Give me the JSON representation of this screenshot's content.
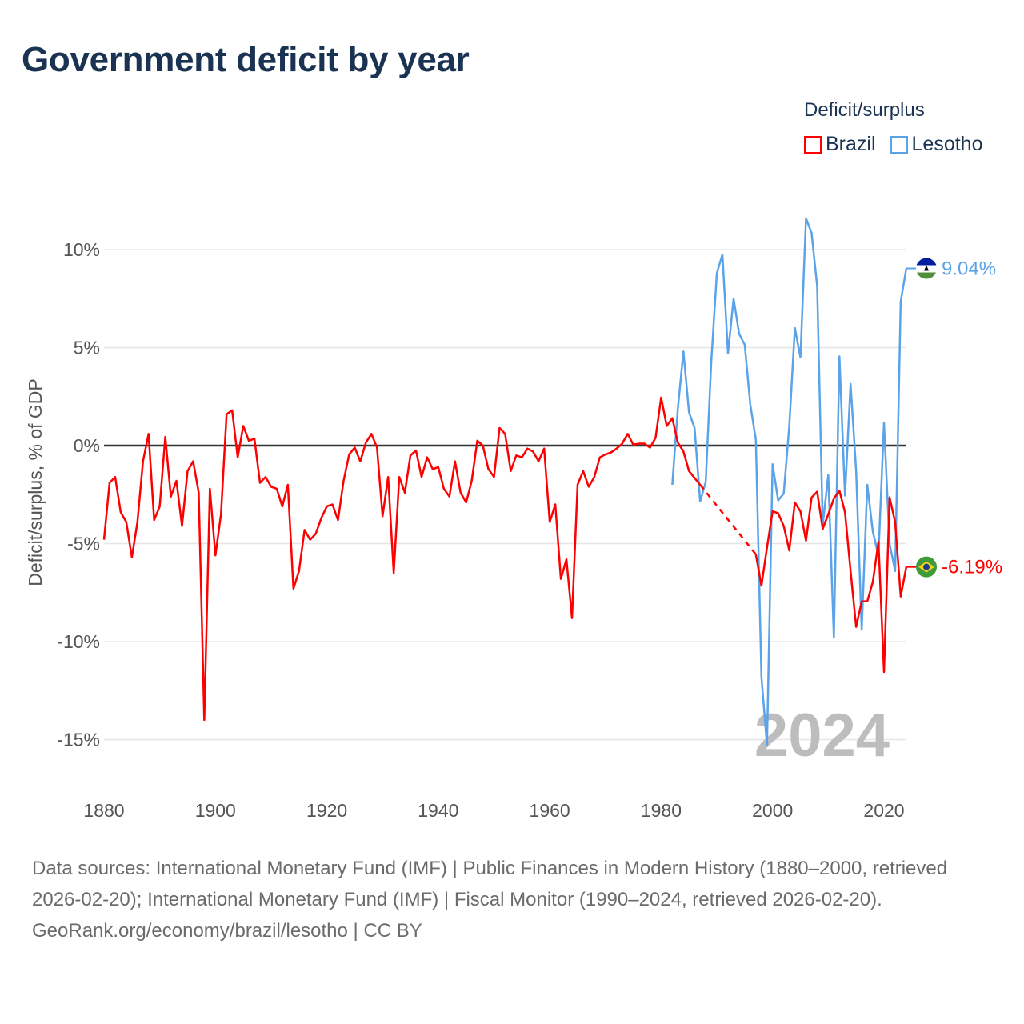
{
  "title": "Government deficit by year",
  "legend": {
    "title": "Deficit/surplus",
    "items": [
      {
        "name": "Brazil",
        "color": "#ff0000"
      },
      {
        "name": "Lesotho",
        "color": "#5ba3e8"
      }
    ]
  },
  "end_labels": {
    "brazil": "-6.19%",
    "lesotho": "9.04%",
    "brazil_flag": "brazil-flag-icon",
    "lesotho_flag": "lesotho-flag-icon"
  },
  "watermark_year": "2024",
  "footer": {
    "sources": "Data sources: International Monetary Fund (IMF) | Public Finances in Modern History (1880–2000, retrieved 2026-02-20); International Monetary Fund (IMF) | Fiscal Monitor (1990–2024, retrieved 2026-02-20).",
    "credit": "GeoRank.org/economy/brazil/lesotho | CC BY"
  },
  "chart_data": {
    "type": "line",
    "title": "Government deficit by year",
    "xlabel": "",
    "ylabel": "Deficit/surplus, % of GDP",
    "xlim": [
      1880,
      2024
    ],
    "ylim": [
      -17,
      12
    ],
    "xticks": [
      1880,
      1900,
      1920,
      1940,
      1960,
      1980,
      2000,
      2020
    ],
    "xtick_labels": [
      "1880",
      "1900",
      "1920",
      "1940",
      "1960",
      "1980",
      "2000",
      "2020"
    ],
    "yticks": [
      10,
      5,
      0,
      -5,
      -10,
      -15
    ],
    "ytick_labels": [
      "10%",
      "5%",
      "0%",
      "-5%",
      "-10%",
      "-15%"
    ],
    "grid": true,
    "legend_position": "top-right",
    "series": [
      {
        "name": "Brazil",
        "color": "#ff0000",
        "start_year": 1880,
        "gap_style": "dashed",
        "values": [
          -4.8,
          -1.9,
          -1.6,
          -3.4,
          -3.9,
          -5.7,
          -3.9,
          -0.8,
          0.6,
          -3.8,
          -3.1,
          0.45,
          -2.6,
          -1.8,
          -4.1,
          -1.3,
          -0.8,
          -2.4,
          -14.0,
          -2.2,
          -5.6,
          -3.5,
          1.6,
          1.8,
          -0.6,
          1.0,
          0.25,
          0.35,
          -1.9,
          -1.6,
          -2.1,
          -2.2,
          -3.1,
          -2.0,
          -7.3,
          -6.4,
          -4.3,
          -4.8,
          -4.5,
          -3.7,
          -3.1,
          -3.0,
          -3.8,
          -1.8,
          -0.45,
          -0.1,
          -0.8,
          0.15,
          0.6,
          -0.1,
          -3.6,
          -1.6,
          -6.5,
          -1.6,
          -2.4,
          -0.5,
          -0.25,
          -1.6,
          -0.6,
          -1.2,
          -1.1,
          -2.2,
          -2.6,
          -0.8,
          -2.4,
          -2.9,
          -1.8,
          0.25,
          0.0,
          -1.2,
          -1.6,
          0.9,
          0.6,
          -1.3,
          -0.5,
          -0.6,
          -0.15,
          -0.3,
          -0.8,
          -0.15,
          -3.9,
          -3.0,
          -6.8,
          -5.8,
          -8.8,
          -2.0,
          -1.3,
          -2.1,
          -1.6,
          -0.6,
          -0.45,
          -0.35,
          -0.15,
          0.1,
          0.6,
          0.05,
          0.1,
          0.1,
          -0.1,
          0.4,
          2.45,
          1.0,
          1.4,
          0.15,
          -0.3,
          -1.3,
          -1.65,
          -2.0,
          null,
          null,
          null,
          null,
          null,
          null,
          null,
          null,
          null,
          -5.55,
          -7.15,
          -5.2,
          -3.35,
          -3.45,
          -4.1,
          -5.35,
          -2.9,
          -3.35,
          -4.85,
          -2.65,
          -2.35,
          -4.25,
          -3.5,
          -2.7,
          -2.3,
          -3.4,
          -6.4,
          -9.25,
          -7.95,
          -7.95,
          -6.95,
          -4.9,
          -11.55,
          -2.65,
          -3.9,
          -7.7,
          -6.19
        ]
      },
      {
        "name": "Lesotho",
        "color": "#5ba3e8",
        "start_year": 1982,
        "values": [
          -2.0,
          1.9,
          4.8,
          1.7,
          0.9,
          -2.85,
          -1.85,
          4.3,
          8.8,
          9.75,
          4.7,
          7.5,
          5.7,
          5.15,
          2.1,
          0.3,
          -11.8,
          -15.3,
          -0.95,
          -2.8,
          -2.45,
          1.0,
          6.0,
          4.5,
          11.6,
          10.85,
          8.15,
          -4.05,
          -1.5,
          -9.8,
          4.55,
          -2.55,
          3.15,
          -1.3,
          -9.4,
          -2.0,
          -4.4,
          -5.6,
          1.15,
          -5.0,
          -6.4,
          7.35,
          9.04
        ]
      }
    ]
  }
}
